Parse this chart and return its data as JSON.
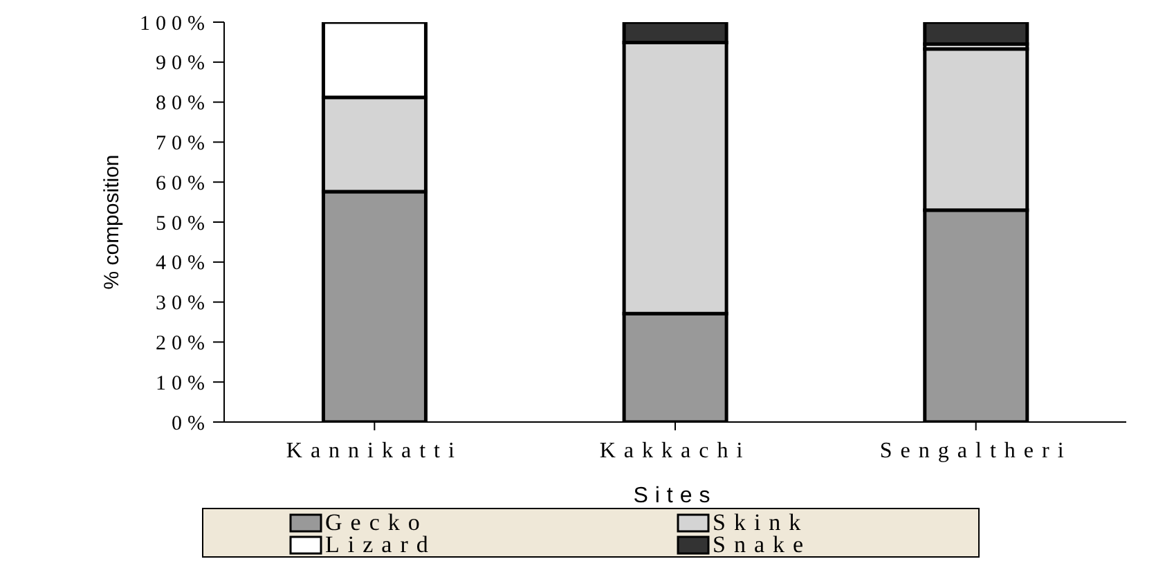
{
  "chart_data": {
    "type": "bar",
    "stacked": true,
    "xlabel": "Sites",
    "ylabel": "% composition",
    "categories": [
      "Kannikatti",
      "Kakkachi",
      "Sengaltheri"
    ],
    "series": [
      {
        "name": "Gecko",
        "color": "#999999",
        "values": [
          57.6,
          27.1,
          53.0
        ]
      },
      {
        "name": "Skink",
        "color": "#d4d4d4",
        "values": [
          23.6,
          67.8,
          40.3
        ]
      },
      {
        "name": "Lizard",
        "color": "#ffffff",
        "values": [
          18.8,
          0,
          1.2
        ]
      },
      {
        "name": "Snake",
        "color": "#333333",
        "values": [
          0,
          5.1,
          5.5
        ]
      }
    ],
    "ylim": [
      0,
      100
    ],
    "yticks": [
      {
        "value": 0,
        "label": "0%"
      },
      {
        "value": 10,
        "label": "10%"
      },
      {
        "value": 20,
        "label": "20%"
      },
      {
        "value": 30,
        "label": "30%"
      },
      {
        "value": 40,
        "label": "40%"
      },
      {
        "value": 50,
        "label": "50%"
      },
      {
        "value": 60,
        "label": "60%"
      },
      {
        "value": 70,
        "label": "70%"
      },
      {
        "value": 80,
        "label": "80%"
      },
      {
        "value": 90,
        "label": "90%"
      },
      {
        "value": 100,
        "label": "100%"
      }
    ],
    "grid": false,
    "legend": "bottom"
  }
}
